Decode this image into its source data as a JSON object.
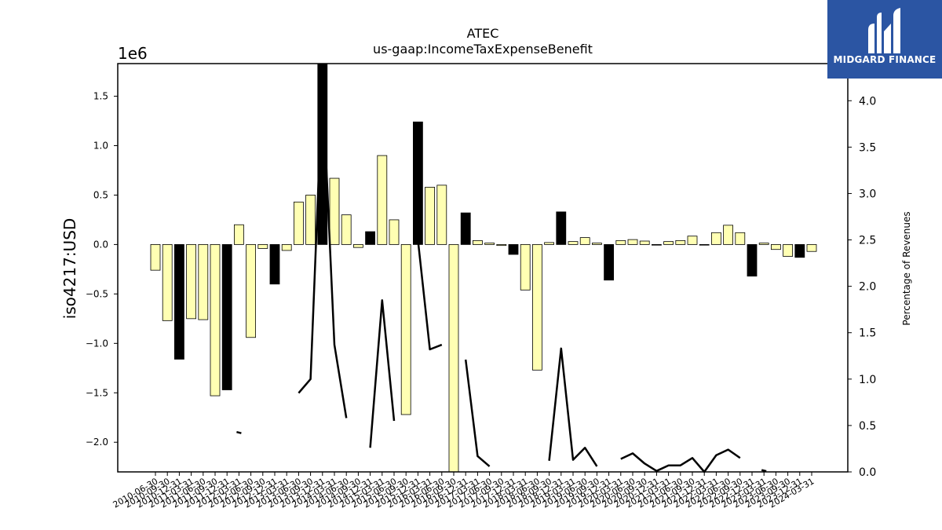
{
  "logo": {
    "text": "MIDGARD FINANCE",
    "background": "#2b55a3"
  },
  "chart_data": {
    "type": "bar",
    "title": "ATEC",
    "subtitle": "us-gaap:IncomeTaxExpenseBenefit",
    "ylabel": "iso4217:USD",
    "y2label": "Percentage of Revenues",
    "y_scale_label": "1e6",
    "ylim": [
      -2300000,
      1830000
    ],
    "y2lim": [
      0,
      4.4
    ],
    "yticks": [
      -2000000,
      -1500000,
      -1000000,
      -500000,
      0,
      500000,
      1000000,
      1500000
    ],
    "ytick_labels": [
      "−2.0",
      "−1.5",
      "−1.0",
      "−0.5",
      "0.0",
      "0.5",
      "1.0",
      "1.5"
    ],
    "y2ticks": [
      0,
      0.5,
      1.0,
      1.5,
      2.0,
      2.5,
      3.0,
      3.5,
      4.0
    ],
    "y2tick_labels": [
      "0.0",
      "0.5",
      "1.0",
      "1.5",
      "2.0",
      "2.5",
      "3.0",
      "3.5",
      "4.0"
    ],
    "colors": {
      "annual": "#000000",
      "quarterly": "#ffffb3",
      "edge": "#000000",
      "line": "#000000"
    },
    "categories": [
      "2010-06-30",
      "2010-09-30",
      "2010-12-31",
      "2011-03-31",
      "2011-06-30",
      "2011-09-30",
      "2011-12-31",
      "2012-03-31",
      "2012-06-30",
      "2012-09-30",
      "2012-12-31",
      "2013-03-31",
      "2013-06-30",
      "2013-09-30",
      "2013-12-31",
      "2014-03-31",
      "2014-06-30",
      "2014-09-30",
      "2014-12-31",
      "2015-03-31",
      "2015-06-30",
      "2015-09-30",
      "2015-12-31",
      "2016-03-31",
      "2016-06-30",
      "2016-09-30",
      "2016-12-31",
      "2017-03-31",
      "2017-06-30",
      "2017-09-30",
      "2017-12-31",
      "2018-03-31",
      "2018-06-30",
      "2018-09-30",
      "2018-12-31",
      "2019-03-31",
      "2019-06-30",
      "2019-09-30",
      "2019-12-31",
      "2020-03-31",
      "2020-06-30",
      "2020-09-30",
      "2020-12-31",
      "2021-03-31",
      "2021-06-30",
      "2021-09-30",
      "2021-12-31",
      "2022-03-31",
      "2022-06-30",
      "2022-09-30",
      "2022-12-31",
      "2023-03-31",
      "2023-06-30",
      "2023-09-30",
      "2023-12-31",
      "2024-03-31"
    ],
    "values": [
      -260000,
      -770000,
      -1160000,
      -750000,
      -760000,
      -1530000,
      -1470000,
      200000,
      -940000,
      -40000,
      -400000,
      -60000,
      430000,
      500000,
      1850000,
      670000,
      300000,
      -30000,
      130000,
      900000,
      250000,
      -1720000,
      1240000,
      580000,
      600000,
      -2400000,
      320000,
      40000,
      15000,
      -10000,
      -100000,
      -460000,
      -1270000,
      20000,
      330000,
      30000,
      70000,
      15000,
      -360000,
      40000,
      50000,
      35000,
      -5000,
      30000,
      40000,
      85000,
      -5000,
      120000,
      195000,
      120000,
      -320000,
      15000,
      -50000,
      -120000,
      -130000,
      -70000
    ],
    "bar_kinds": [
      "q",
      "q",
      "a",
      "q",
      "q",
      "q",
      "a",
      "q",
      "q",
      "q",
      "a",
      "q",
      "q",
      "q",
      "a",
      "q",
      "q",
      "q",
      "a",
      "q",
      "q",
      "q",
      "a",
      "q",
      "q",
      "q",
      "a",
      "q",
      "q",
      "q",
      "a",
      "q",
      "q",
      "q",
      "a",
      "q",
      "q",
      "q",
      "a",
      "q",
      "q",
      "q",
      "a",
      "q",
      "q",
      "q",
      "a",
      "q",
      "q",
      "q",
      "a",
      "q",
      "q",
      "q",
      "a",
      "q"
    ],
    "percentage_of_revenues": [
      null,
      null,
      null,
      null,
      null,
      null,
      null,
      0.43,
      null,
      null,
      null,
      null,
      0.85,
      1.0,
      4.2,
      1.37,
      0.58,
      null,
      0.26,
      1.85,
      0.55,
      null,
      2.5,
      1.32,
      1.37,
      null,
      1.21,
      0.17,
      0.06,
      null,
      null,
      null,
      null,
      0.12,
      1.33,
      0.13,
      0.26,
      0.06,
      null,
      0.14,
      0.2,
      0.09,
      0.01,
      0.07,
      0.07,
      0.15,
      0.0,
      0.18,
      0.24,
      0.15,
      null,
      0.02,
      null,
      null,
      null,
      null
    ]
  }
}
